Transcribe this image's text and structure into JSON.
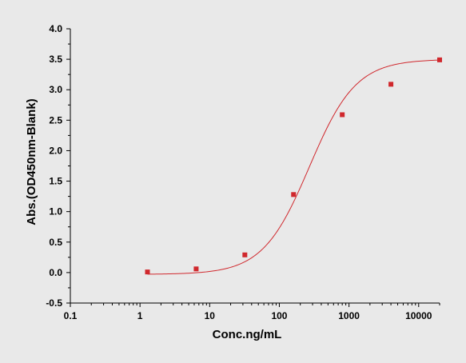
{
  "chart_data": {
    "type": "scatter",
    "xlabel": "Conc.ng/mL",
    "ylabel": "Abs.(OD450nm-Blank)",
    "xscale": "log",
    "xlim": [
      0.1,
      20000
    ],
    "ylim": [
      -0.5,
      4.0
    ],
    "grid": false,
    "x_ticks": [
      {
        "value": 0.1,
        "label": "0.1"
      },
      {
        "value": 1,
        "label": "1"
      },
      {
        "value": 10,
        "label": "10"
      },
      {
        "value": 100,
        "label": "100"
      },
      {
        "value": 1000,
        "label": "1000"
      },
      {
        "value": 10000,
        "label": "10000"
      }
    ],
    "y_ticks": [
      {
        "value": -0.5,
        "label": "-0.5"
      },
      {
        "value": 0.0,
        "label": "0.0"
      },
      {
        "value": 0.5,
        "label": "0.5"
      },
      {
        "value": 1.0,
        "label": "1.0"
      },
      {
        "value": 1.5,
        "label": "1.5"
      },
      {
        "value": 2.0,
        "label": "2.0"
      },
      {
        "value": 2.5,
        "label": "2.5"
      },
      {
        "value": 3.0,
        "label": "3.0"
      },
      {
        "value": 3.5,
        "label": "3.5"
      },
      {
        "value": 4.0,
        "label": "4.0"
      }
    ],
    "points": [
      {
        "x": 1.28,
        "y": 0.01
      },
      {
        "x": 6.4,
        "y": 0.06
      },
      {
        "x": 32,
        "y": 0.29
      },
      {
        "x": 160,
        "y": 1.28
      },
      {
        "x": 800,
        "y": 2.59
      },
      {
        "x": 4000,
        "y": 3.09
      },
      {
        "x": 20000,
        "y": 3.49
      }
    ],
    "fit_curve": {
      "type": "4PL",
      "bottom": -0.03,
      "top": 3.5,
      "ec50": 270,
      "hill": 1.3
    },
    "marker_color": "#d0282d",
    "curve_color": "#d0282d"
  }
}
